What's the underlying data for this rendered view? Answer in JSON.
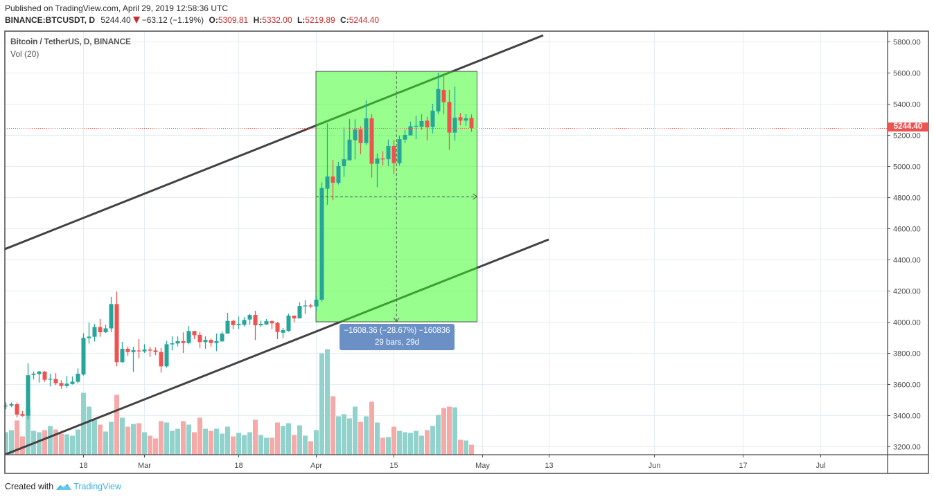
{
  "header": {
    "published": "Published on TradingView.com, April 29, 2019 12:58:36 UTC",
    "symbol": "BINANCE:BTCUSDT, D",
    "last": "5244.40",
    "change_icon": "down-triangle-icon",
    "change": "−63.12 (−1.19%)",
    "ohlc": [
      {
        "label": "O:",
        "value": "5309.81"
      },
      {
        "label": "H:",
        "value": "5332.00"
      },
      {
        "label": "L:",
        "value": "5219.89"
      },
      {
        "label": "C:",
        "value": "5244.40"
      }
    ]
  },
  "legend": {
    "series": "Bitcoin / TetherUS, D, BINANCE",
    "volume": "Vol (20)"
  },
  "price_axis": {
    "ticks": [
      "5800.00",
      "5600.00",
      "5400.00",
      "5200.00",
      "5000.00",
      "4800.00",
      "4600.00",
      "4400.00",
      "4200.00",
      "4000.00",
      "3800.00",
      "3600.00",
      "3400.00",
      "3200.00"
    ],
    "last_price_label": "5244.40"
  },
  "time_axis": {
    "ticks": [
      {
        "label": "18",
        "index": 14
      },
      {
        "label": "Mar",
        "index": 25
      },
      {
        "label": "18",
        "index": 42
      },
      {
        "label": "Apr",
        "index": 56
      },
      {
        "label": "15",
        "index": 70
      },
      {
        "label": "May",
        "index": 86
      },
      {
        "label": "13",
        "index": 98
      },
      {
        "label": "Jun",
        "index": 117
      },
      {
        "label": "17",
        "index": 133
      },
      {
        "label": "Jul",
        "index": 147
      }
    ]
  },
  "measurement": {
    "line1": "−1608.36 (−28.67%) −160836",
    "line2": "29 bars, 29d"
  },
  "footer": {
    "created_with": "Created with",
    "logo_icon": "tradingview-logo-icon",
    "brand": "TradingView"
  },
  "colors": {
    "up": "#26a69a",
    "down": "#ef5350",
    "volume_up": "#92d2cc",
    "volume_down": "#f7a9a7",
    "box_fill": "rgba(50,255,30,0.5)",
    "box_border": "#555555",
    "trendline": "#424242",
    "grid": "#e3edf3",
    "frame": "#4b4b4b",
    "last_price": "#ef5350",
    "measure_label": "#6a90c6",
    "ohlc_value": "#cc2b2b",
    "brand": "#3bb3e4"
  },
  "chart_data": {
    "type": "bar",
    "style": "candlestick",
    "title": "Bitcoin / TetherUS, D, BINANCE",
    "xlabel": "",
    "ylabel": "",
    "ylim": [
      3150,
      5860
    ],
    "y_ticks": [
      5800,
      5600,
      5400,
      5200,
      5000,
      4800,
      4600,
      4400,
      4200,
      4000,
      3800,
      3600,
      3400,
      3200
    ],
    "x_tick_labels": [
      "18",
      "Mar",
      "18",
      "Apr",
      "15",
      "May",
      "13",
      "Jun",
      "17",
      "Jul"
    ],
    "grid": true,
    "legend_position": "top-left",
    "last_price": 5244.4,
    "columns": [
      "date",
      "open",
      "high",
      "low",
      "close",
      "volume_rel"
    ],
    "candles": [
      [
        "Feb 4",
        3458,
        3482,
        3440,
        3462,
        32
      ],
      [
        "Feb 5",
        3462,
        3482,
        3452,
        3471,
        35
      ],
      [
        "Feb 6",
        3471,
        3482,
        3386,
        3404,
        49
      ],
      [
        "Feb 7",
        3408,
        3427,
        3391,
        3397,
        26
      ],
      [
        "Feb 8",
        3397,
        3733,
        3373,
        3657,
        66
      ],
      [
        "Feb 9",
        3659,
        3681,
        3630,
        3667,
        34
      ],
      [
        "Feb 10",
        3664,
        3684,
        3610,
        3681,
        32
      ],
      [
        "Feb 11",
        3680,
        3684,
        3615,
        3628,
        35
      ],
      [
        "Feb 12",
        3630,
        3667,
        3585,
        3634,
        41
      ],
      [
        "Feb 13",
        3633,
        3670,
        3593,
        3605,
        36
      ],
      [
        "Feb 14",
        3607,
        3625,
        3570,
        3588,
        30
      ],
      [
        "Feb 15",
        3588,
        3652,
        3575,
        3603,
        29
      ],
      [
        "Feb 16",
        3601,
        3649,
        3597,
        3616,
        27
      ],
      [
        "Feb 17",
        3615,
        3701,
        3605,
        3667,
        36
      ],
      [
        "Feb 18",
        3662,
        3926,
        3655,
        3897,
        89
      ],
      [
        "Feb 19",
        3895,
        3996,
        3860,
        3905,
        69
      ],
      [
        "Feb 20",
        3904,
        3987,
        3873,
        3967,
        50
      ],
      [
        "Feb 21",
        3967,
        4018,
        3904,
        3933,
        43
      ],
      [
        "Feb 22",
        3933,
        3982,
        3928,
        3958,
        33
      ],
      [
        "Feb 23",
        3958,
        4160,
        3933,
        4114,
        47
      ],
      [
        "Feb 24",
        4114,
        4194,
        3714,
        3741,
        86
      ],
      [
        "Feb 25",
        3741,
        3871,
        3738,
        3827,
        53
      ],
      [
        "Feb 26",
        3827,
        3841,
        3781,
        3806,
        40
      ],
      [
        "Feb 27",
        3806,
        3840,
        3679,
        3818,
        44
      ],
      [
        "Feb 28",
        3816,
        3889,
        3766,
        3810,
        45
      ],
      [
        "Mar 1",
        3810,
        3856,
        3800,
        3822,
        32
      ],
      [
        "Mar 2",
        3822,
        3840,
        3775,
        3815,
        27
      ],
      [
        "Mar 3",
        3816,
        3837,
        3785,
        3806,
        23
      ],
      [
        "Mar 4",
        3807,
        3832,
        3674,
        3714,
        48
      ],
      [
        "Mar 5",
        3714,
        3877,
        3705,
        3856,
        46
      ],
      [
        "Mar 6",
        3855,
        3907,
        3816,
        3862,
        34
      ],
      [
        "Mar 7",
        3861,
        3907,
        3842,
        3876,
        37
      ],
      [
        "Mar 8",
        3876,
        3932,
        3800,
        3864,
        48
      ],
      [
        "Mar 9",
        3864,
        3973,
        3855,
        3941,
        43
      ],
      [
        "Mar 10",
        3941,
        3941,
        3890,
        3914,
        32
      ],
      [
        "Mar 11",
        3916,
        3936,
        3832,
        3870,
        53
      ],
      [
        "Mar 12",
        3870,
        3907,
        3827,
        3884,
        37
      ],
      [
        "Mar 13",
        3884,
        3892,
        3842,
        3864,
        34
      ],
      [
        "Mar 14",
        3864,
        3925,
        3812,
        3876,
        37
      ],
      [
        "Mar 15",
        3874,
        3938,
        3874,
        3924,
        30
      ],
      [
        "Mar 16",
        3925,
        4058,
        3925,
        4006,
        40
      ],
      [
        "Mar 17",
        4006,
        4013,
        3953,
        3979,
        26
      ],
      [
        "Mar 18",
        3979,
        4034,
        3953,
        3987,
        31
      ],
      [
        "Mar 19",
        3981,
        4030,
        3970,
        4012,
        28
      ],
      [
        "Mar 20",
        4015,
        4052,
        3981,
        4044,
        32
      ],
      [
        "Mar 21",
        4044,
        4071,
        3883,
        3978,
        50
      ],
      [
        "Mar 22",
        3978,
        4007,
        3967,
        3987,
        28
      ],
      [
        "Mar 23",
        3983,
        4018,
        3981,
        4004,
        24
      ],
      [
        "Mar 24",
        4004,
        4010,
        3953,
        3990,
        24
      ],
      [
        "Mar 25",
        3993,
        4000,
        3889,
        3935,
        46
      ],
      [
        "Mar 26",
        3930,
        3960,
        3895,
        3947,
        41
      ],
      [
        "Mar 27",
        3942,
        4052,
        3936,
        4040,
        45
      ],
      [
        "Mar 28",
        4040,
        4040,
        3996,
        4022,
        28
      ],
      [
        "Mar 29",
        4022,
        4126,
        4022,
        4102,
        42
      ],
      [
        "Mar 30",
        4101,
        4138,
        4050,
        4105,
        27
      ],
      [
        "Mar 31",
        4105,
        4117,
        4088,
        4099,
        19
      ],
      [
        "Apr 1",
        4099,
        4165,
        4070,
        4142,
        35
      ],
      [
        "Apr 2",
        4142,
        4896,
        4130,
        4859,
        146
      ],
      [
        "Apr 3",
        4855,
        5274,
        4751,
        4933,
        152
      ],
      [
        "Apr 4",
        4933,
        5040,
        4781,
        4893,
        84
      ],
      [
        "Apr 5",
        4893,
        5027,
        4882,
        5000,
        55
      ],
      [
        "Apr 6",
        5000,
        5248,
        4930,
        5044,
        58
      ],
      [
        "Apr 7",
        5037,
        5304,
        5037,
        5170,
        52
      ],
      [
        "Apr 8",
        5166,
        5301,
        5043,
        5236,
        69
      ],
      [
        "Apr 9",
        5236,
        5256,
        5077,
        5148,
        47
      ],
      [
        "Apr 10",
        5148,
        5422,
        5136,
        5307,
        55
      ],
      [
        "Apr 11",
        5307,
        5333,
        4926,
        5015,
        76
      ],
      [
        "Apr 12",
        5015,
        5082,
        4864,
        5049,
        46
      ],
      [
        "Apr 13",
        5049,
        5096,
        5004,
        5043,
        24
      ],
      [
        "Apr 14",
        5044,
        5170,
        5000,
        5129,
        25
      ],
      [
        "Apr 15",
        5129,
        5167,
        4952,
        5019,
        40
      ],
      [
        "Apr 16",
        5019,
        5196,
        5004,
        5173,
        34
      ],
      [
        "Apr 17",
        5170,
        5233,
        5148,
        5200,
        32
      ],
      [
        "Apr 18",
        5197,
        5286,
        5197,
        5256,
        31
      ],
      [
        "Apr 19",
        5253,
        5322,
        5173,
        5259,
        34
      ],
      [
        "Apr 20",
        5253,
        5333,
        5233,
        5289,
        27
      ],
      [
        "Apr 21",
        5292,
        5316,
        5166,
        5249,
        35
      ],
      [
        "Apr 22",
        5252,
        5400,
        5210,
        5356,
        41
      ],
      [
        "Apr 23",
        5351,
        5600,
        5333,
        5495,
        57
      ],
      [
        "Apr 24",
        5489,
        5578,
        5333,
        5410,
        67
      ],
      [
        "Apr 25",
        5412,
        5489,
        5104,
        5215,
        69
      ],
      [
        "Apr 26",
        5215,
        5511,
        5163,
        5311,
        68
      ],
      [
        "Apr 27",
        5314,
        5341,
        5262,
        5292,
        21
      ],
      [
        "Apr 28",
        5292,
        5333,
        5259,
        5307,
        20
      ],
      [
        "Apr 29",
        5309.81,
        5332.0,
        5219.89,
        5244.4,
        14
      ]
    ],
    "drawings": {
      "channel_upper": [
        [
          -0.125,
          4467
        ],
        [
          97,
          5840
        ]
      ],
      "channel_lower": [
        [
          -0.125,
          3147
        ],
        [
          98,
          4529
        ]
      ],
      "price_range_box": {
        "from_index": 56,
        "to_index": 85,
        "top": 5608.36,
        "bottom": 4000.0
      }
    }
  }
}
